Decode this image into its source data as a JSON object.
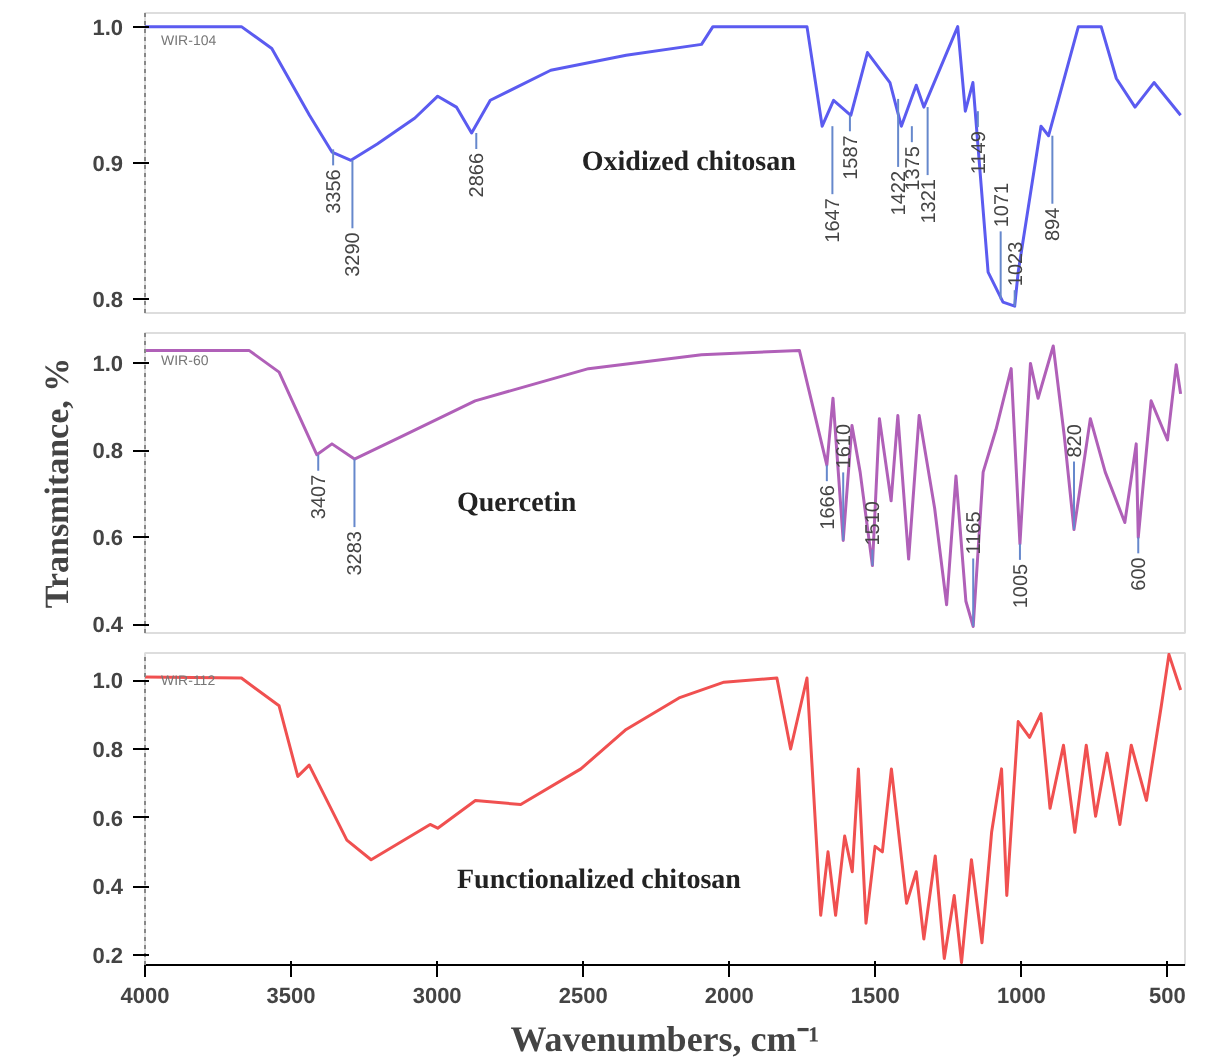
{
  "chart_data": [
    {
      "type": "line",
      "x": [
        4000,
        3670,
        3566,
        3437,
        3360,
        3295,
        3205,
        3076,
        2998,
        2934,
        2882,
        2818,
        2611,
        2353,
        2095,
        2056,
        1734,
        1682,
        1643,
        1584,
        1527,
        1450,
        1411,
        1360,
        1334,
        1218,
        1192,
        1166,
        1114,
        1063,
        1023,
        1011,
        933,
        907,
        805,
        727,
        675,
        611,
        546,
        455
      ],
      "series": [
        {
          "name": "Oxidized chitosan",
          "color": "#5b5bf0",
          "values": [
            1.0,
            1.0,
            0.984,
            0.935,
            0.908,
            0.902,
            0.914,
            0.933,
            0.949,
            0.941,
            0.922,
            0.946,
            0.968,
            0.979,
            0.987,
            1.0,
            1.0,
            0.927,
            0.946,
            0.935,
            0.981,
            0.959,
            0.927,
            0.957,
            0.941,
            1.0,
            0.938,
            0.959,
            0.82,
            0.798,
            0.795,
            0.82,
            0.927,
            0.92,
            1.0,
            1.0,
            0.962,
            0.941,
            0.959,
            0.935
          ]
        }
      ],
      "xlim": [
        4000,
        440
      ],
      "ylim": [
        0.79,
        1.01
      ],
      "yticks": [
        {
          "value": 0.8,
          "label": "0.8"
        },
        {
          "value": 0.9,
          "label": "0.9"
        },
        {
          "value": 1.0,
          "label": "1.0"
        }
      ],
      "tick_labels": "y",
      "grid": false,
      "legend": false,
      "annotations": [
        "WIR-104",
        {
          "text": "3356",
          "x": 3356,
          "y": 0.91
        },
        {
          "text": "3290",
          "x": 3290,
          "y": 0.902
        },
        {
          "text": "2866",
          "x": 2866,
          "y": 0.922
        },
        {
          "text": "1647",
          "x": 1647,
          "y": 0.927
        },
        {
          "text": "1587",
          "x": 1587,
          "y": 0.935
        },
        {
          "text": "1422",
          "x": 1422,
          "y": 0.947
        },
        {
          "text": "1375",
          "x": 1375,
          "y": 0.927
        },
        {
          "text": "1321",
          "x": 1321,
          "y": 0.941
        },
        {
          "text": "1149",
          "x": 1149,
          "y": 0.938
        },
        {
          "text": "1071",
          "x": 1071,
          "y": 0.8
        },
        {
          "text": "1023",
          "x": 1023,
          "y": 0.795
        },
        {
          "text": "894",
          "x": 894,
          "y": 0.92
        }
      ]
    },
    {
      "type": "line",
      "x": [
        4000,
        3644,
        3541,
        3412,
        3360,
        3283,
        3128,
        2870,
        2482,
        2095,
        1760,
        1666,
        1645,
        1610,
        1580,
        1552,
        1510,
        1486,
        1446,
        1423,
        1386,
        1350,
        1297,
        1256,
        1224,
        1190,
        1165,
        1131,
        1087,
        1035,
        1005,
        969,
        943,
        891,
        853,
        820,
        764,
        713,
        646,
        607,
        600,
        556,
        500,
        470,
        455
      ],
      "series": [
        {
          "name": "Quercetin",
          "color": "#b060b8",
          "values": [
            1.03,
            1.03,
            0.98,
            0.79,
            0.815,
            0.78,
            0.83,
            0.914,
            0.988,
            1.02,
            1.03,
            0.766,
            0.92,
            0.593,
            0.857,
            0.75,
            0.535,
            0.873,
            0.684,
            0.88,
            0.55,
            0.88,
            0.667,
            0.445,
            0.741,
            0.453,
            0.395,
            0.75,
            0.848,
            0.988,
            0.585,
            1.0,
            0.92,
            1.04,
            0.832,
            0.618,
            0.873,
            0.75,
            0.634,
            0.815,
            0.6,
            0.914,
            0.824,
            0.997,
            0.93
          ]
        }
      ],
      "xlim": [
        4000,
        440
      ],
      "ylim": [
        0.38,
        1.07
      ],
      "yticks": [
        {
          "value": 0.4,
          "label": "0.4"
        },
        {
          "value": 0.6,
          "label": "0.6"
        },
        {
          "value": 0.8,
          "label": "0.8"
        },
        {
          "value": 1.0,
          "label": "1.0"
        }
      ],
      "tick_labels": "y",
      "grid": false,
      "legend": false,
      "ylabel": "Transmitance, %",
      "annotations": [
        "WIR-60",
        {
          "text": "3407",
          "x": 3407,
          "y": 0.79
        },
        {
          "text": "3283",
          "x": 3283,
          "y": 0.78
        },
        {
          "text": "1666",
          "x": 1666,
          "y": 0.766
        },
        {
          "text": "1610",
          "x": 1610,
          "y": 0.593
        },
        {
          "text": "1510",
          "x": 1510,
          "y": 0.535
        },
        {
          "text": "1165",
          "x": 1165,
          "y": 0.395
        },
        {
          "text": "1005",
          "x": 1005,
          "y": 0.585
        },
        {
          "text": "820",
          "x": 820,
          "y": 0.618
        },
        {
          "text": "600",
          "x": 600,
          "y": 0.6
        }
      ]
    },
    {
      "type": "line",
      "x": [
        4000,
        3670,
        3541,
        3477,
        3438,
        3309,
        3226,
        3024,
        2998,
        2869,
        2714,
        2508,
        2353,
        2172,
        2018,
        1837,
        1790,
        1734,
        1687,
        1662,
        1636,
        1605,
        1579,
        1558,
        1532,
        1501,
        1476,
        1445,
        1393,
        1360,
        1334,
        1295,
        1264,
        1230,
        1205,
        1171,
        1135,
        1102,
        1068,
        1050,
        1011,
        972,
        933,
        902,
        856,
        817,
        778,
        746,
        707,
        663,
        624,
        572,
        521,
        495,
        455
      ],
      "series": [
        {
          "name": "Functionalized chitosan",
          "color": "#f05050",
          "values": [
            1.01,
            1.007,
            0.926,
            0.72,
            0.753,
            0.534,
            0.477,
            0.58,
            0.569,
            0.65,
            0.638,
            0.742,
            0.857,
            0.949,
            0.995,
            1.007,
            0.8,
            1.007,
            0.315,
            0.5,
            0.315,
            0.546,
            0.442,
            0.742,
            0.292,
            0.516,
            0.5,
            0.742,
            0.35,
            0.442,
            0.246,
            0.488,
            0.189,
            0.373,
            0.177,
            0.477,
            0.235,
            0.557,
            0.742,
            0.373,
            0.88,
            0.834,
            0.903,
            0.627,
            0.811,
            0.557,
            0.811,
            0.604,
            0.788,
            0.58,
            0.811,
            0.65,
            0.926,
            1.076,
            0.972
          ]
        }
      ],
      "xlim": [
        4000,
        440
      ],
      "ylim": [
        0.17,
        1.08
      ],
      "xticks": [
        4000,
        3500,
        3000,
        2500,
        2000,
        1500,
        1000,
        500
      ],
      "yticks": [
        {
          "value": 0.2,
          "label": "0.2"
        },
        {
          "value": 0.4,
          "label": "0.4"
        },
        {
          "value": 0.6,
          "label": "0.6"
        },
        {
          "value": 0.8,
          "label": "0.8"
        },
        {
          "value": 1.0,
          "label": "1.0"
        }
      ],
      "grid": false,
      "legend": false,
      "xlabel": "Wavenumbers, cm⁻¹",
      "annotations": [
        "WIR-112"
      ]
    }
  ]
}
